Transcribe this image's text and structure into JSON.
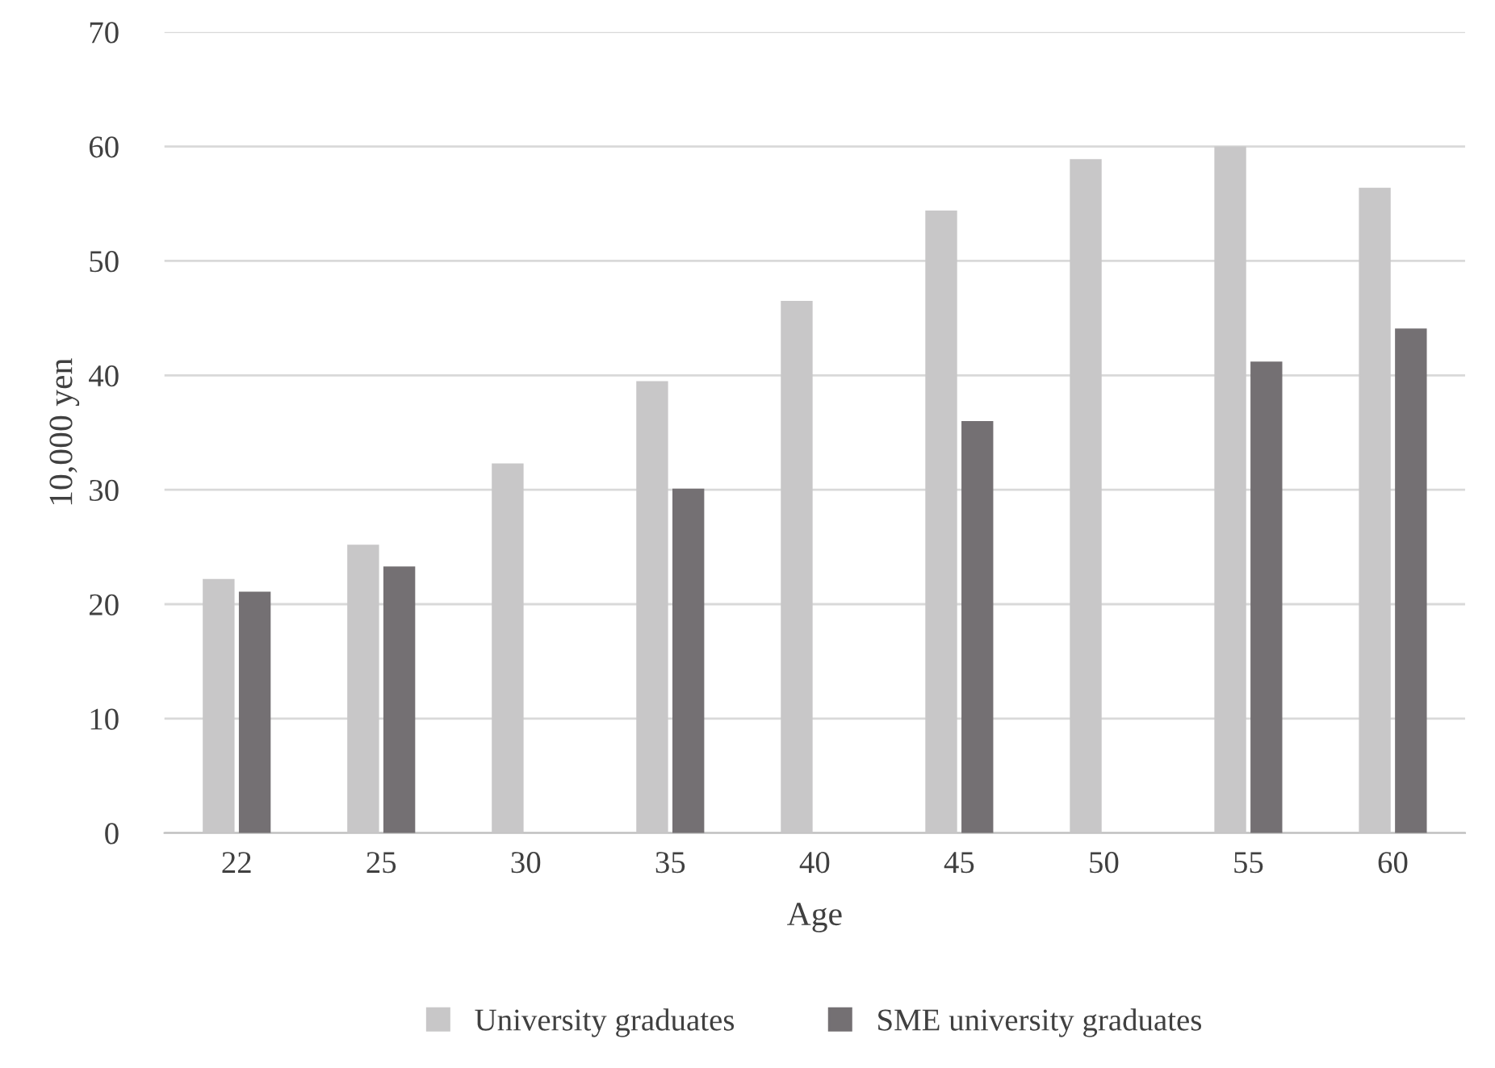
{
  "chart_data": {
    "type": "bar",
    "xlabel": "Age",
    "ylabel": "10,000 yen",
    "categories": [
      "22",
      "25",
      "30",
      "35",
      "40",
      "45",
      "50",
      "55",
      "60"
    ],
    "series": [
      {
        "name": "University graduates",
        "color": "#c8c7c8",
        "values": [
          22.2,
          25.2,
          32.3,
          39.5,
          46.5,
          54.4,
          58.9,
          60.0,
          56.4
        ]
      },
      {
        "name": "SME university graduates",
        "color": "#747073",
        "values": [
          21.1,
          23.3,
          null,
          30.1,
          null,
          36.0,
          null,
          41.2,
          44.1
        ]
      }
    ],
    "ylim": [
      0,
      70
    ],
    "yticks": [
      0,
      10,
      20,
      30,
      40,
      50,
      60,
      70
    ],
    "grid": "y",
    "legend": "bottom"
  }
}
